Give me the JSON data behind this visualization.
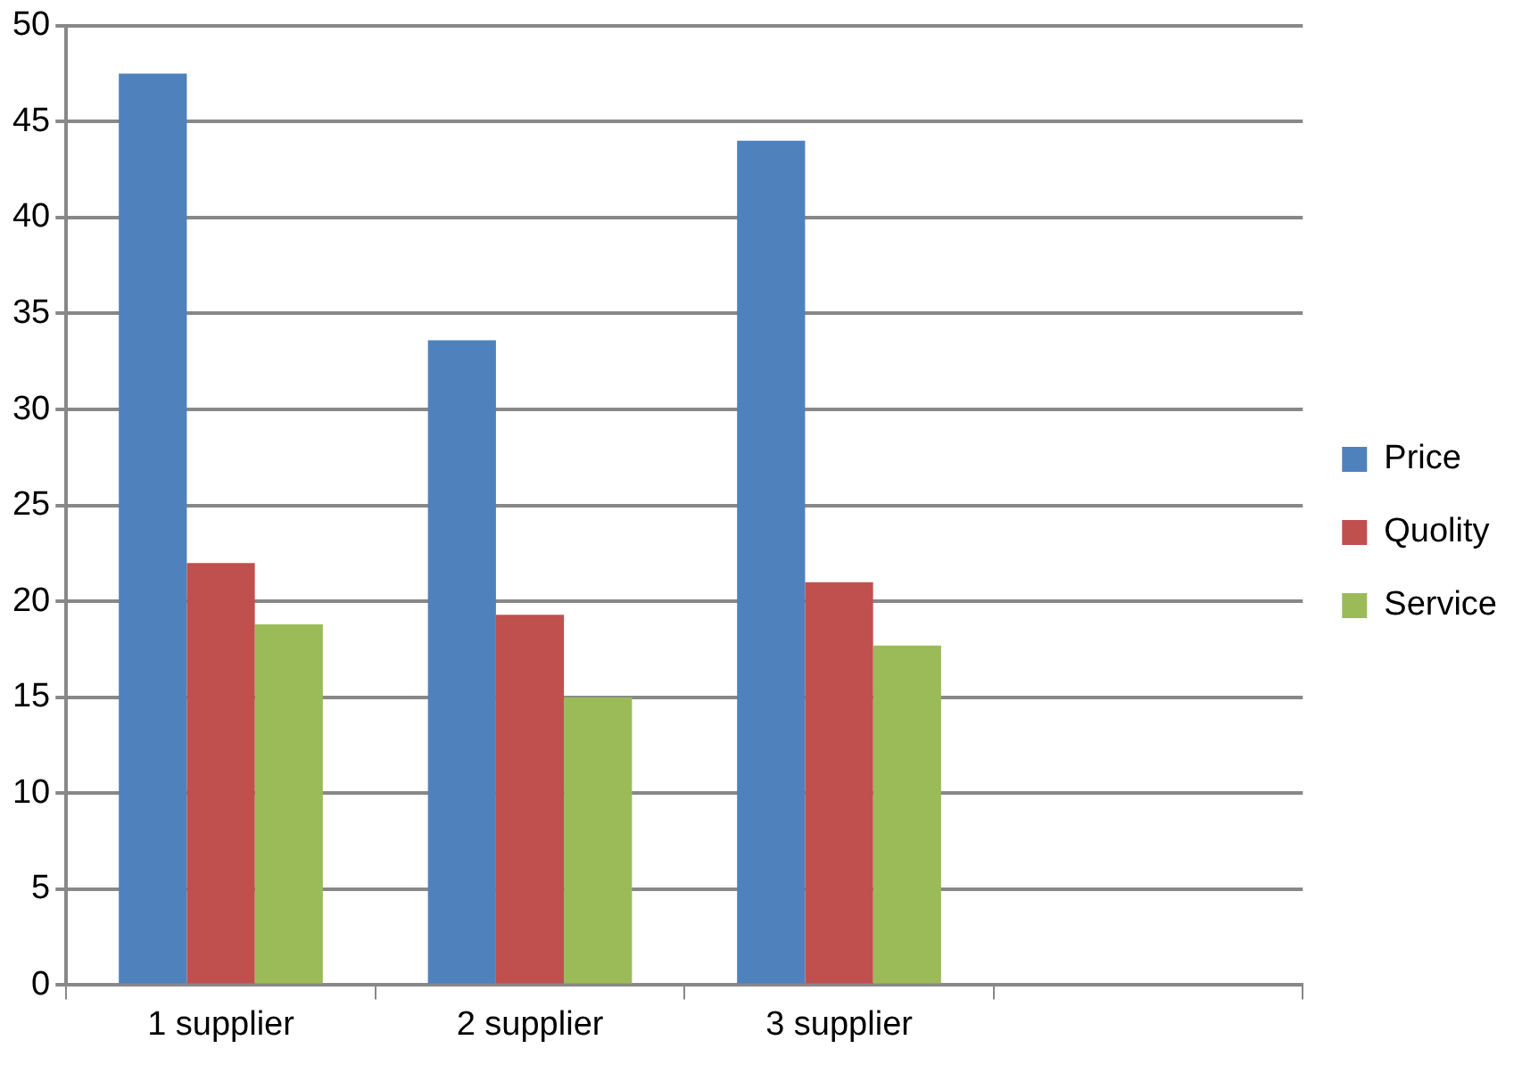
{
  "chart_data": {
    "type": "bar",
    "categories": [
      "1 supplier",
      "2 supplier",
      "3 supplier",
      null
    ],
    "series": [
      {
        "name": "Price",
        "color": "#4f81bd",
        "values": [
          47.5,
          33.6,
          44.0,
          null
        ]
      },
      {
        "name": "Quolity",
        "color": "#c0504d",
        "values": [
          22.0,
          19.3,
          21.0,
          null
        ]
      },
      {
        "name": "Service",
        "color": "#9bbb59",
        "values": [
          18.8,
          15.0,
          17.7,
          null
        ]
      }
    ],
    "ylim": [
      0,
      50
    ],
    "yticks": [
      0,
      5,
      10,
      15,
      20,
      25,
      30,
      35,
      40,
      45,
      50
    ],
    "grid": "y",
    "legend": "right"
  }
}
